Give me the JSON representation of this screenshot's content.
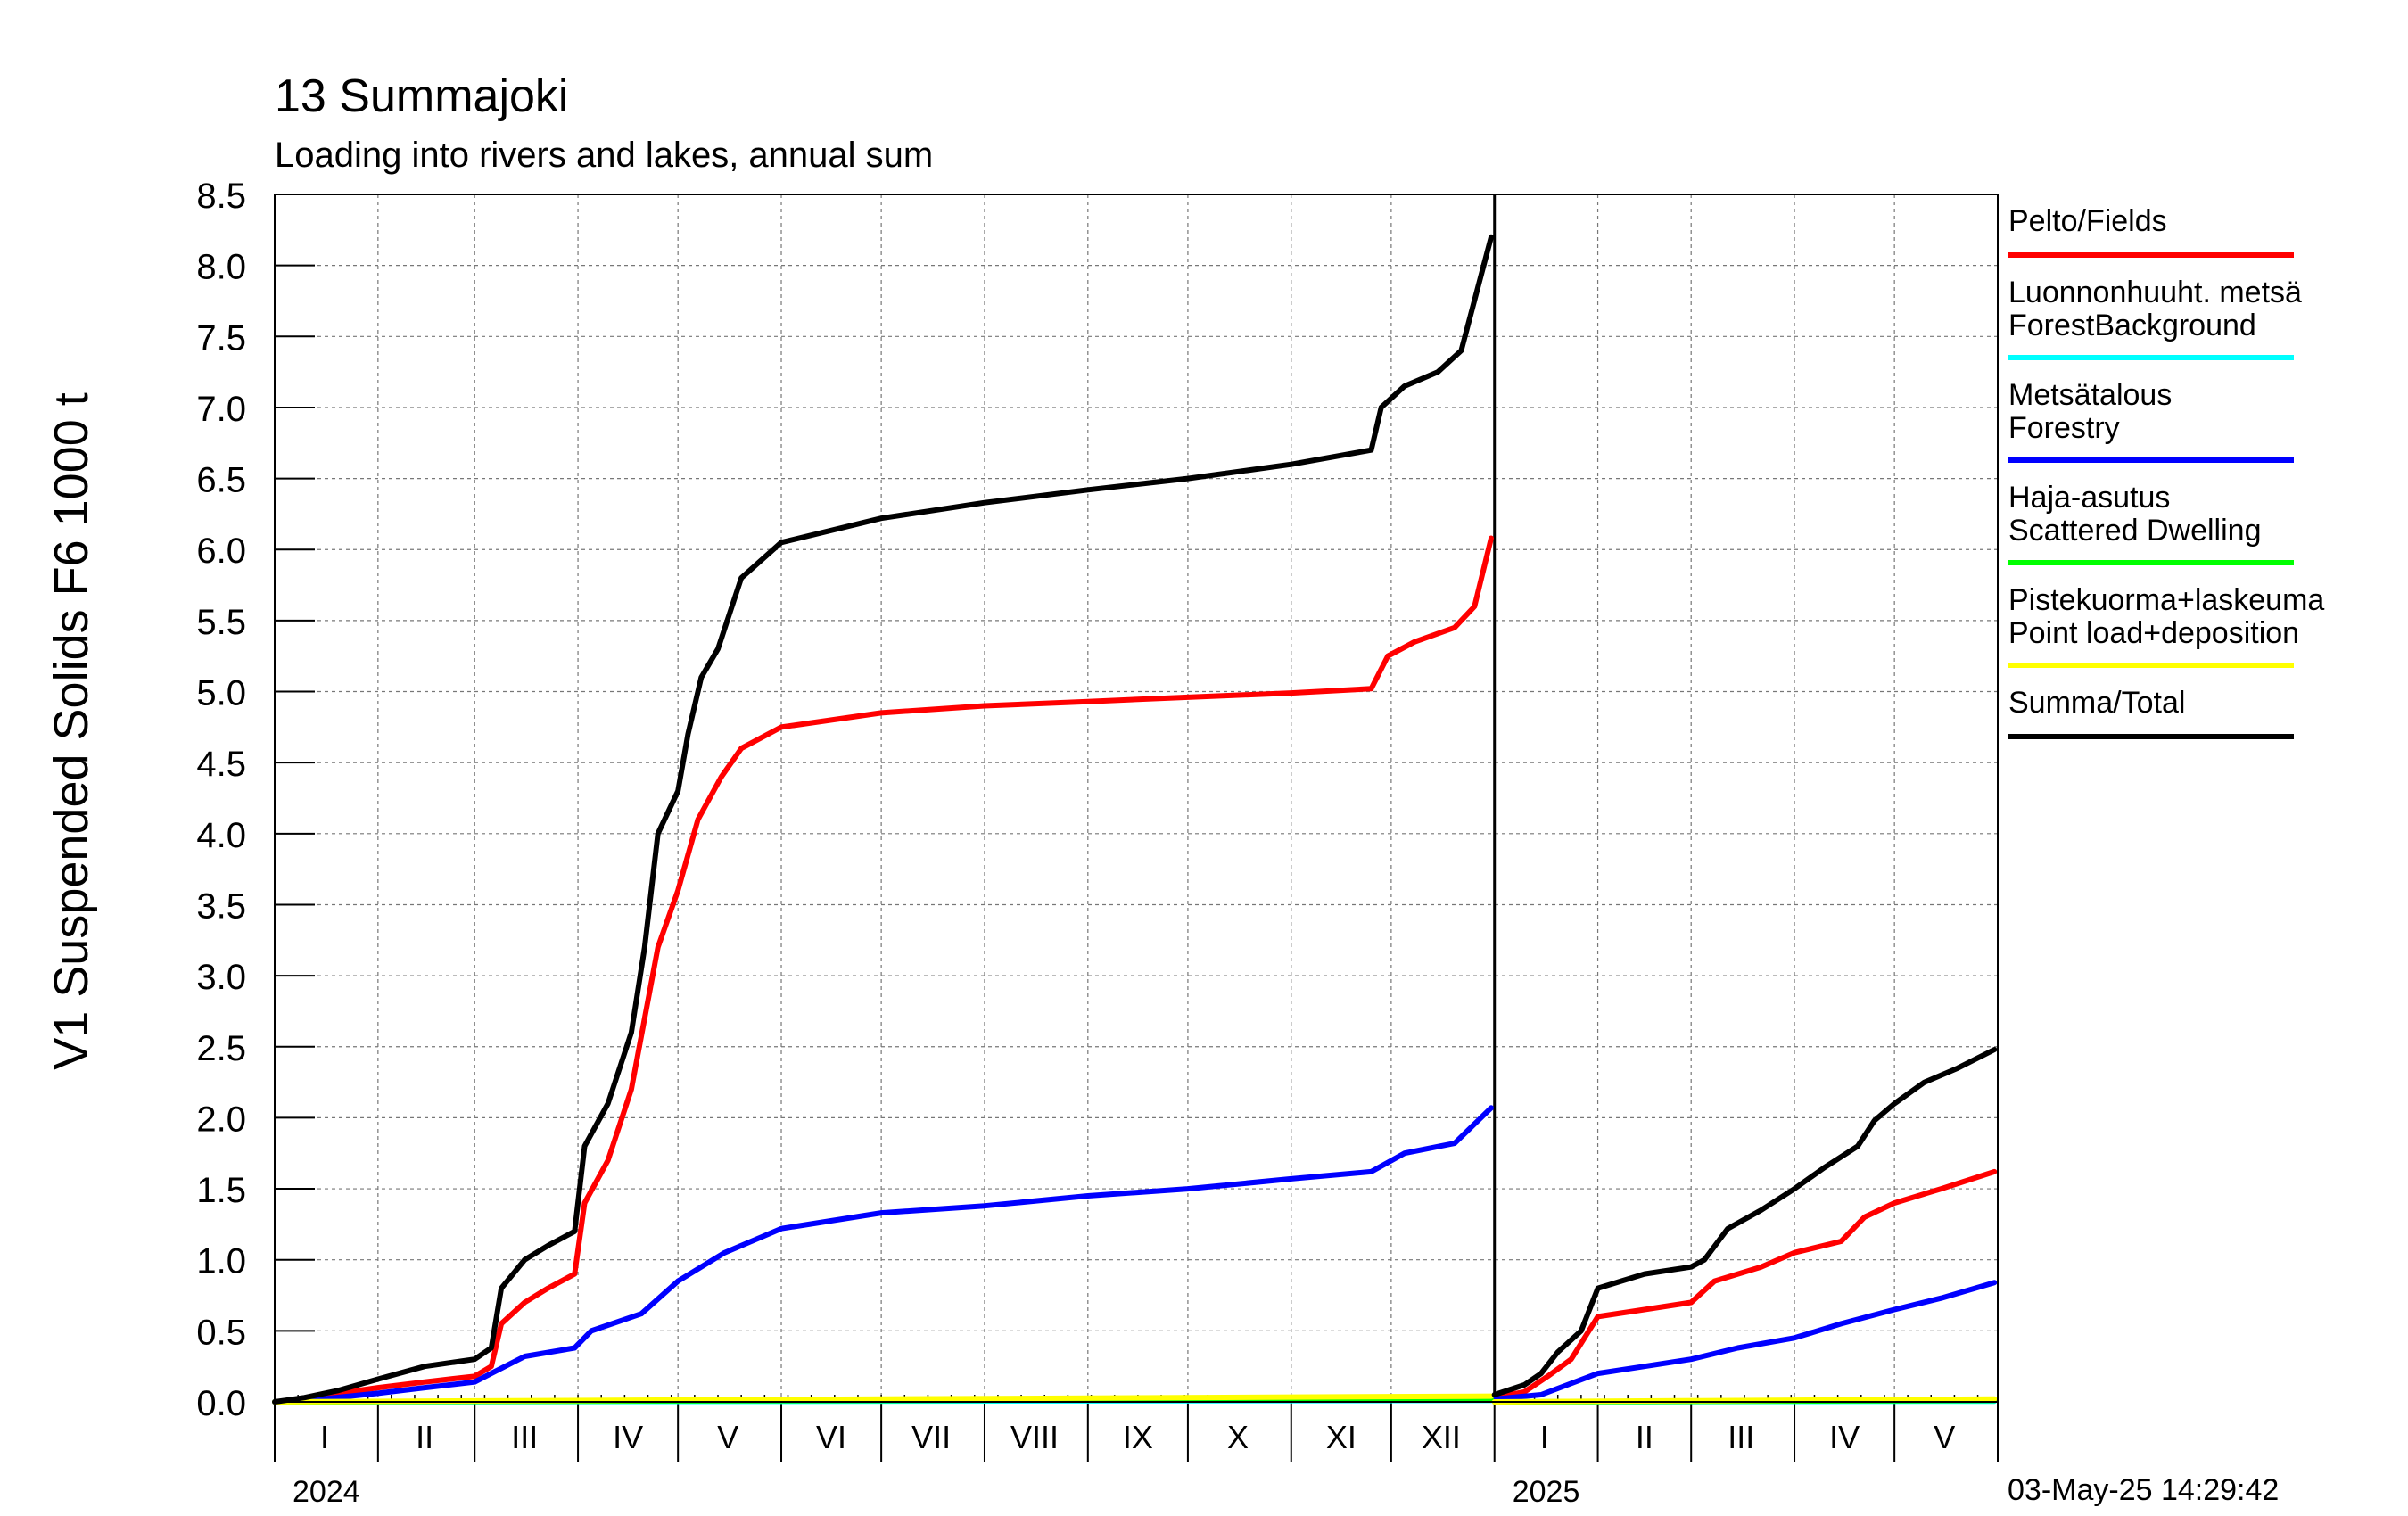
{
  "title": "13 Summajoki",
  "subtitle": "Loading into rivers and lakes, annual sum",
  "ylabel": "V1 Suspended Solids F6 1000 t",
  "timestamp": "03-May-25 14:29:42",
  "legend": [
    {
      "lines": [
        "Pelto/Fields"
      ],
      "color": "#ff0000"
    },
    {
      "lines": [
        "Luonnonhuuht. metsä",
        "ForestBackground"
      ],
      "color": "#00ffff"
    },
    {
      "lines": [
        "Metsätalous",
        "Forestry"
      ],
      "color": "#0000ff"
    },
    {
      "lines": [
        "Haja-asutus",
        "Scattered Dwelling"
      ],
      "color": "#00ff00"
    },
    {
      "lines": [
        "Pistekuorma+laskeuma",
        "Point load+deposition"
      ],
      "color": "#ffff00"
    },
    {
      "lines": [
        "Summa/Total"
      ],
      "color": "#000000"
    }
  ],
  "chart_data": {
    "type": "line",
    "title": "13 Summajoki",
    "subtitle": "Loading into rivers and lakes, annual sum",
    "ylabel": "V1 Suspended Solids F6 1000 t",
    "ylim": [
      0,
      8.5
    ],
    "yticks": [
      "0.0",
      "0.5",
      "1.0",
      "1.5",
      "2.0",
      "2.5",
      "3.0",
      "3.5",
      "4.0",
      "4.5",
      "5.0",
      "5.5",
      "6.0",
      "6.5",
      "7.0",
      "7.5",
      "8.0",
      "8.5"
    ],
    "xlim": [
      "2024-01-01",
      "2025-05-31"
    ],
    "grid": true,
    "legend_position": "right",
    "month_labels": [
      {
        "label": "I",
        "date": "2024-01-16"
      },
      {
        "label": "II",
        "date": "2024-02-15"
      },
      {
        "label": "III",
        "date": "2024-03-16"
      },
      {
        "label": "IV",
        "date": "2024-04-16"
      },
      {
        "label": "V",
        "date": "2024-05-16"
      },
      {
        "label": "VI",
        "date": "2024-06-16"
      },
      {
        "label": "VII",
        "date": "2024-07-16"
      },
      {
        "label": "VIII",
        "date": "2024-08-16"
      },
      {
        "label": "IX",
        "date": "2024-09-16"
      },
      {
        "label": "X",
        "date": "2024-10-16"
      },
      {
        "label": "XI",
        "date": "2024-11-16"
      },
      {
        "label": "XII",
        "date": "2024-12-16"
      },
      {
        "label": "I",
        "date": "2025-01-16"
      },
      {
        "label": "II",
        "date": "2025-02-15"
      },
      {
        "label": "III",
        "date": "2025-03-16"
      },
      {
        "label": "IV",
        "date": "2025-04-16"
      },
      {
        "label": "V",
        "date": "2025-05-16"
      }
    ],
    "year_labels": [
      {
        "label": "2024",
        "date": "2024-01-01"
      },
      {
        "label": "2025",
        "date": "2025-01-01"
      }
    ],
    "series": [
      {
        "name": "Pelto/Fields",
        "color": "#ff0000",
        "segments": [
          [
            [
              "2024-01-01",
              0
            ],
            [
              "2024-01-10",
              0.02
            ],
            [
              "2024-01-20",
              0.06
            ],
            [
              "2024-02-01",
              0.1
            ],
            [
              "2024-02-15",
              0.14
            ],
            [
              "2024-03-01",
              0.18
            ],
            [
              "2024-03-06",
              0.25
            ],
            [
              "2024-03-09",
              0.55
            ],
            [
              "2024-03-16",
              0.7
            ],
            [
              "2024-03-23",
              0.8
            ],
            [
              "2024-03-31",
              0.9
            ],
            [
              "2024-04-03",
              1.4
            ],
            [
              "2024-04-10",
              1.7
            ],
            [
              "2024-04-17",
              2.2
            ],
            [
              "2024-04-21",
              2.7
            ],
            [
              "2024-04-25",
              3.2
            ],
            [
              "2024-05-01",
              3.6
            ],
            [
              "2024-05-07",
              4.1
            ],
            [
              "2024-05-14",
              4.4
            ],
            [
              "2024-05-20",
              4.6
            ],
            [
              "2024-06-01",
              4.75
            ],
            [
              "2024-07-01",
              4.85
            ],
            [
              "2024-08-01",
              4.9
            ],
            [
              "2024-09-01",
              4.93
            ],
            [
              "2024-10-01",
              4.96
            ],
            [
              "2024-11-01",
              4.99
            ],
            [
              "2024-11-25",
              5.02
            ],
            [
              "2024-11-30",
              5.25
            ],
            [
              "2024-12-08",
              5.35
            ],
            [
              "2024-12-20",
              5.45
            ],
            [
              "2024-12-26",
              5.6
            ],
            [
              "2024-12-31",
              6.08
            ]
          ],
          [
            [
              "2025-01-01",
              0.03
            ],
            [
              "2025-01-10",
              0.07
            ],
            [
              "2025-01-17",
              0.18
            ],
            [
              "2025-01-24",
              0.3
            ],
            [
              "2025-02-01",
              0.6
            ],
            [
              "2025-02-15",
              0.65
            ],
            [
              "2025-03-01",
              0.7
            ],
            [
              "2025-03-08",
              0.85
            ],
            [
              "2025-03-22",
              0.95
            ],
            [
              "2025-04-01",
              1.05
            ],
            [
              "2025-04-15",
              1.13
            ],
            [
              "2025-04-22",
              1.3
            ],
            [
              "2025-05-01",
              1.4
            ],
            [
              "2025-05-15",
              1.5
            ],
            [
              "2025-05-31",
              1.62
            ]
          ]
        ]
      },
      {
        "name": "Luonnonhuuht. metsä ForestBackground",
        "color": "#00ffff",
        "segments": [
          [
            [
              "2024-01-01",
              0
            ],
            [
              "2024-12-31",
              0.01
            ]
          ],
          [
            [
              "2025-01-01",
              0
            ],
            [
              "2025-05-31",
              0.005
            ]
          ]
        ]
      },
      {
        "name": "Metsätalous Forestry",
        "color": "#0000ff",
        "segments": [
          [
            [
              "2024-01-01",
              0
            ],
            [
              "2024-01-15",
              0.02
            ],
            [
              "2024-02-01",
              0.06
            ],
            [
              "2024-02-15",
              0.1
            ],
            [
              "2024-03-01",
              0.14
            ],
            [
              "2024-03-06",
              0.2
            ],
            [
              "2024-03-16",
              0.32
            ],
            [
              "2024-03-31",
              0.38
            ],
            [
              "2024-04-05",
              0.5
            ],
            [
              "2024-04-20",
              0.62
            ],
            [
              "2024-05-01",
              0.85
            ],
            [
              "2024-05-15",
              1.05
            ],
            [
              "2024-06-01",
              1.22
            ],
            [
              "2024-07-01",
              1.33
            ],
            [
              "2024-08-01",
              1.38
            ],
            [
              "2024-09-01",
              1.45
            ],
            [
              "2024-10-01",
              1.5
            ],
            [
              "2024-11-01",
              1.57
            ],
            [
              "2024-11-25",
              1.62
            ],
            [
              "2024-12-05",
              1.75
            ],
            [
              "2024-12-20",
              1.82
            ],
            [
              "2024-12-31",
              2.07
            ]
          ],
          [
            [
              "2025-01-01",
              0.02
            ],
            [
              "2025-01-15",
              0.05
            ],
            [
              "2025-02-01",
              0.2
            ],
            [
              "2025-02-15",
              0.25
            ],
            [
              "2025-03-01",
              0.3
            ],
            [
              "2025-03-15",
              0.38
            ],
            [
              "2025-04-01",
              0.45
            ],
            [
              "2025-04-15",
              0.55
            ],
            [
              "2025-05-01",
              0.65
            ],
            [
              "2025-05-15",
              0.73
            ],
            [
              "2025-05-31",
              0.84
            ]
          ]
        ]
      },
      {
        "name": "Haja-asutus Scattered Dwelling",
        "color": "#00ff00",
        "segments": [
          [
            [
              "2024-01-01",
              0
            ],
            [
              "2024-12-31",
              0.02
            ]
          ],
          [
            [
              "2025-01-01",
              0
            ],
            [
              "2025-05-31",
              0.01
            ]
          ]
        ]
      },
      {
        "name": "Pistekuorma+laskeuma Point load+deposition",
        "color": "#ffff00",
        "segments": [
          [
            [
              "2024-01-01",
              0
            ],
            [
              "2024-12-31",
              0.04
            ]
          ],
          [
            [
              "2025-01-01",
              0
            ],
            [
              "2025-05-31",
              0.02
            ]
          ]
        ]
      },
      {
        "name": "Summa/Total",
        "color": "#000000",
        "segments": [
          [
            [
              "2024-01-01",
              0
            ],
            [
              "2024-01-10",
              0.03
            ],
            [
              "2024-01-20",
              0.08
            ],
            [
              "2024-02-01",
              0.16
            ],
            [
              "2024-02-15",
              0.25
            ],
            [
              "2024-03-01",
              0.3
            ],
            [
              "2024-03-06",
              0.38
            ],
            [
              "2024-03-09",
              0.8
            ],
            [
              "2024-03-16",
              1.0
            ],
            [
              "2024-03-23",
              1.1
            ],
            [
              "2024-03-31",
              1.2
            ],
            [
              "2024-04-03",
              1.8
            ],
            [
              "2024-04-10",
              2.1
            ],
            [
              "2024-04-17",
              2.6
            ],
            [
              "2024-04-21",
              3.2
            ],
            [
              "2024-04-25",
              4.0
            ],
            [
              "2024-05-01",
              4.3
            ],
            [
              "2024-05-04",
              4.7
            ],
            [
              "2024-05-08",
              5.1
            ],
            [
              "2024-05-13",
              5.3
            ],
            [
              "2024-05-20",
              5.8
            ],
            [
              "2024-06-01",
              6.05
            ],
            [
              "2024-07-01",
              6.22
            ],
            [
              "2024-08-01",
              6.33
            ],
            [
              "2024-09-01",
              6.42
            ],
            [
              "2024-10-01",
              6.5
            ],
            [
              "2024-11-01",
              6.6
            ],
            [
              "2024-11-25",
              6.7
            ],
            [
              "2024-11-28",
              7.0
            ],
            [
              "2024-12-05",
              7.15
            ],
            [
              "2024-12-15",
              7.25
            ],
            [
              "2024-12-22",
              7.4
            ],
            [
              "2024-12-31",
              8.2
            ]
          ],
          [
            [
              "2025-01-01",
              0.05
            ],
            [
              "2025-01-10",
              0.12
            ],
            [
              "2025-01-15",
              0.2
            ],
            [
              "2025-01-20",
              0.35
            ],
            [
              "2025-01-27",
              0.5
            ],
            [
              "2025-02-01",
              0.8
            ],
            [
              "2025-02-15",
              0.9
            ],
            [
              "2025-03-01",
              0.95
            ],
            [
              "2025-03-05",
              1.0
            ],
            [
              "2025-03-12",
              1.22
            ],
            [
              "2025-03-22",
              1.35
            ],
            [
              "2025-04-01",
              1.5
            ],
            [
              "2025-04-10",
              1.65
            ],
            [
              "2025-04-20",
              1.8
            ],
            [
              "2025-04-25",
              1.98
            ],
            [
              "2025-05-01",
              2.1
            ],
            [
              "2025-05-10",
              2.25
            ],
            [
              "2025-05-20",
              2.35
            ],
            [
              "2025-05-31",
              2.48
            ]
          ]
        ]
      }
    ]
  }
}
